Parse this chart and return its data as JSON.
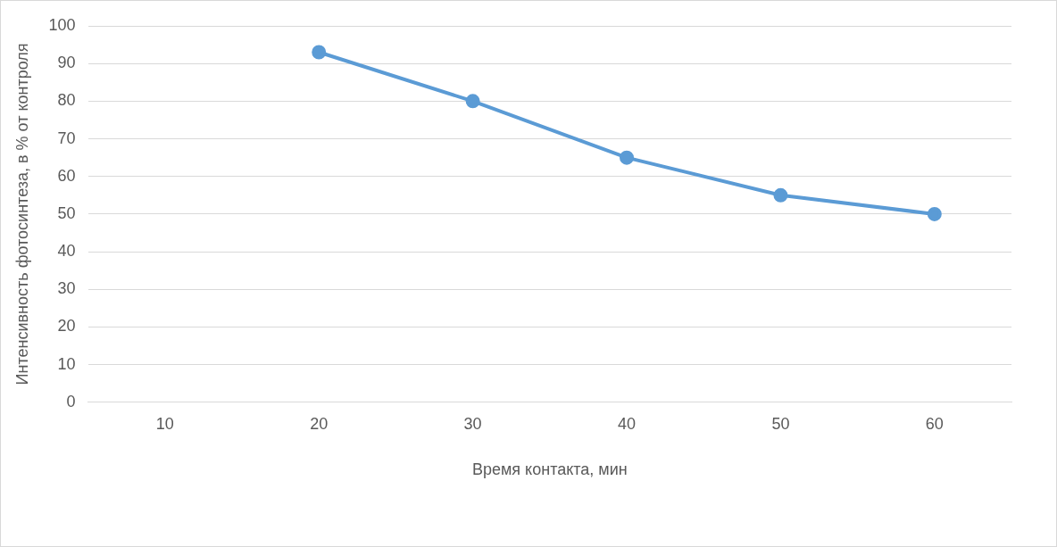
{
  "chart_data": {
    "type": "line",
    "xlabel": "Время контакта, мин",
    "ylabel": "Интенсивность фотосинтеза, в % от контроля",
    "categories": [
      "10",
      "20",
      "30",
      "40",
      "50",
      "60"
    ],
    "series": [
      {
        "color": "#5b9bd5",
        "values": [
          null,
          93,
          80,
          65,
          55,
          50
        ]
      }
    ],
    "ylim": [
      0,
      100
    ],
    "yticks": [
      0,
      10,
      20,
      30,
      40,
      50,
      60,
      70,
      80,
      90,
      100
    ],
    "grid": "y",
    "marker": "circle"
  }
}
